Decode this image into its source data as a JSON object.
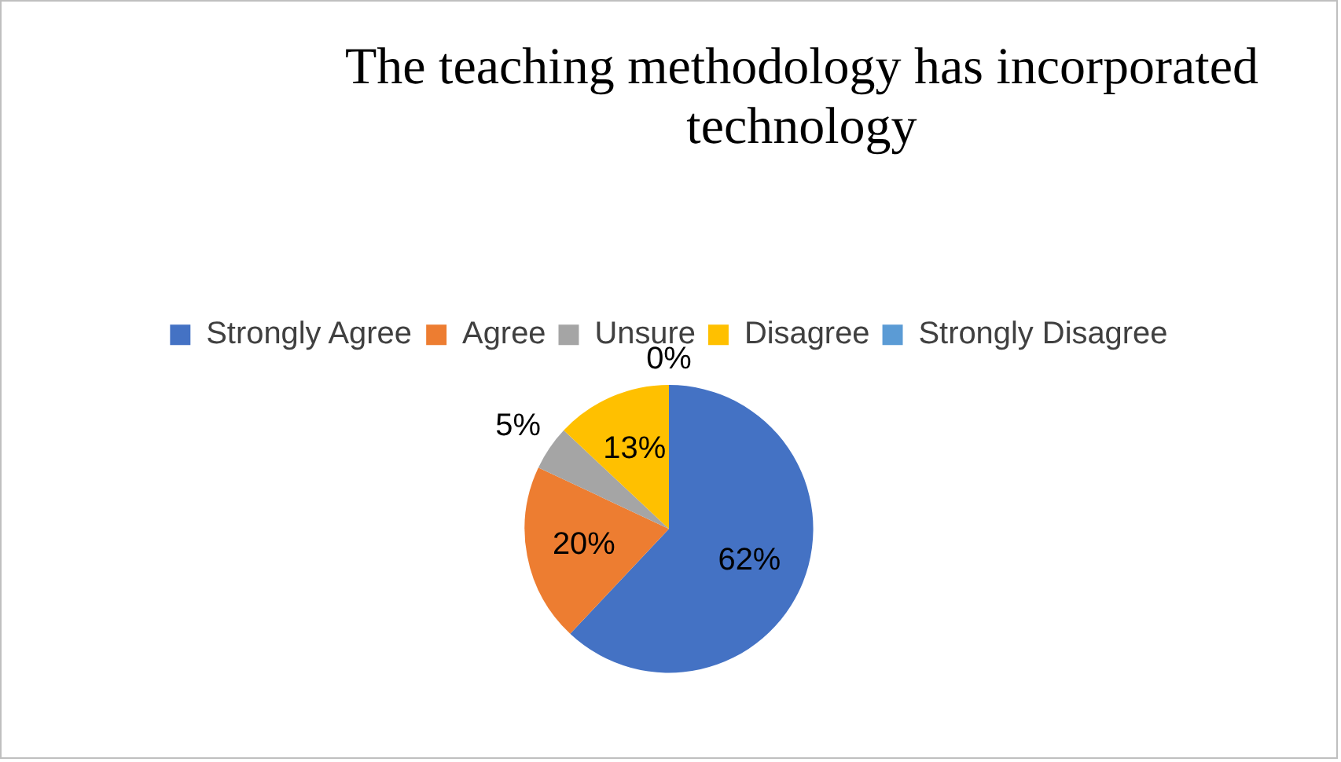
{
  "chart_data": {
    "type": "pie",
    "title": "The teaching methodology has incorporated technology",
    "categories": [
      "Strongly Agree",
      "Agree",
      "Unsure",
      "Disagree",
      "Strongly Disagree"
    ],
    "values": [
      62,
      20,
      5,
      13,
      0
    ],
    "colors": [
      "#4472c4",
      "#ed7d31",
      "#a5a5a5",
      "#ffc000",
      "#5b9bd5"
    ],
    "value_labels": [
      "62%",
      "20%",
      "5%",
      "13%",
      "0%"
    ],
    "legend": "top"
  }
}
